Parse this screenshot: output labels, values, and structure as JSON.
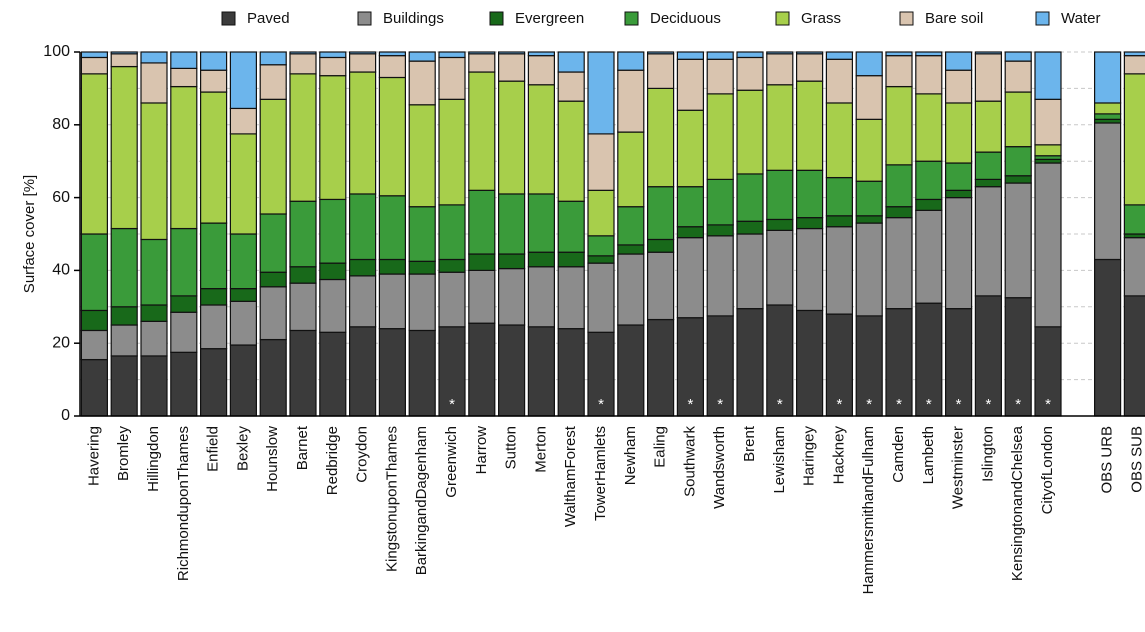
{
  "chart_data": {
    "type": "stacked_bar",
    "y_label": "Surface cover [%]",
    "categories": [
      "Havering",
      "Bromley",
      "Hillingdon",
      "RichmonduponThames",
      "Enfield",
      "Bexley",
      "Hounslow",
      "Barnet",
      "Redbridge",
      "Croydon",
      "KingstonuponThames",
      "BarkingandDagenham",
      "Greenwich",
      "Harrow",
      "Sutton",
      "Merton",
      "WalthamForest",
      "TowerHamlets",
      "Newham",
      "Ealing",
      "Southwark",
      "Wandsworth",
      "Brent",
      "Lewisham",
      "Haringey",
      "Hackney",
      "HammersmithandFulham",
      "Camden",
      "Lambeth",
      "Westminster",
      "Islington",
      "KensingtonandChelsea",
      "CityofLondon",
      null,
      "OBS URB",
      "OBS SUB"
    ],
    "annotations": [
      null,
      null,
      null,
      null,
      null,
      null,
      null,
      null,
      null,
      null,
      null,
      null,
      "*",
      null,
      null,
      null,
      null,
      "*",
      null,
      null,
      "*",
      "*",
      null,
      "*",
      null,
      "*",
      "*",
      "*",
      "*",
      "*",
      "*",
      "*",
      "*",
      null,
      null,
      null
    ],
    "series": [
      {
        "name": "Paved",
        "color": "#3b3b3b",
        "values": [
          15.5,
          16.5,
          16.5,
          17.5,
          18.5,
          19.5,
          21,
          23.5,
          23,
          24.5,
          24,
          23.5,
          24.5,
          25.5,
          25,
          24.5,
          24,
          23,
          25,
          26.5,
          27,
          27.5,
          29.5,
          30.5,
          29,
          28,
          27.5,
          29.5,
          31,
          29.5,
          33,
          32.5,
          24.5,
          null,
          43,
          33
        ]
      },
      {
        "name": "Buildings",
        "color": "#8c8c8c",
        "values": [
          8,
          8.5,
          9.5,
          11,
          12,
          12,
          14.5,
          13,
          14.5,
          14,
          15,
          15.5,
          15,
          14.5,
          15.5,
          16.5,
          17,
          19,
          19.5,
          18.5,
          22,
          22,
          20.5,
          20.5,
          22.5,
          24,
          25.5,
          25,
          25.5,
          30.5,
          30,
          31.5,
          45,
          null,
          37.5,
          16
        ]
      },
      {
        "name": "Evergreen",
        "color": "#18691a",
        "values": [
          5.5,
          5,
          4.5,
          4.5,
          4.5,
          3.5,
          4,
          4.5,
          4.5,
          4.5,
          4,
          3.5,
          3.5,
          4.5,
          4,
          4,
          4,
          2,
          2.5,
          3.5,
          3,
          3,
          3.5,
          3,
          3,
          3,
          2,
          3,
          3,
          2,
          2,
          2,
          1,
          null,
          1,
          1
        ]
      },
      {
        "name": "Deciduous",
        "color": "#3a9b3a",
        "values": [
          21,
          21.5,
          18,
          18.5,
          18,
          15,
          16,
          18,
          17.5,
          18,
          17.5,
          15,
          15,
          17.5,
          16.5,
          16,
          14,
          5.5,
          10.5,
          14.5,
          11,
          12.5,
          13,
          13.5,
          13,
          10.5,
          9.5,
          11.5,
          10.5,
          7.5,
          7.5,
          8,
          1,
          null,
          1.5,
          8
        ]
      },
      {
        "name": "Grass",
        "color": "#a7cf4b",
        "values": [
          44,
          44.5,
          37.5,
          39,
          36,
          27.5,
          31.5,
          35,
          34,
          33.5,
          32.5,
          28,
          29,
          32.5,
          31,
          30,
          27.5,
          12.5,
          20.5,
          27,
          21,
          23.5,
          23,
          23.5,
          24.5,
          20.5,
          17,
          21.5,
          18.5,
          16.5,
          14,
          15,
          3,
          null,
          3,
          36
        ]
      },
      {
        "name": "Bare soil",
        "color": "#d9c4af",
        "values": [
          4.5,
          3.5,
          11,
          5,
          6,
          7,
          9.5,
          5.5,
          5,
          5,
          6,
          12,
          11.5,
          5,
          7.5,
          8,
          8,
          15.5,
          17,
          9.5,
          14,
          9.5,
          9,
          8.5,
          7.5,
          12,
          12,
          8.5,
          10.5,
          9,
          13,
          8.5,
          12.5,
          null,
          0,
          5
        ]
      },
      {
        "name": "Water",
        "color": "#6cb5ec",
        "values": [
          1.5,
          0.5,
          3,
          4.5,
          5,
          15.5,
          3.5,
          0.5,
          1.5,
          0.5,
          1,
          2.5,
          1.5,
          0.5,
          0.5,
          1,
          5.5,
          22.5,
          5,
          0.5,
          2,
          2,
          1.5,
          0.5,
          0.5,
          2,
          6.5,
          1,
          1,
          5,
          0.5,
          2.5,
          13,
          null,
          14,
          1
        ]
      }
    ],
    "ylim": [
      0,
      100
    ],
    "yticks": [
      0,
      20,
      40,
      60,
      80,
      100
    ],
    "minor_yticks": [
      10,
      30,
      50,
      70,
      90
    ],
    "grid": true
  }
}
